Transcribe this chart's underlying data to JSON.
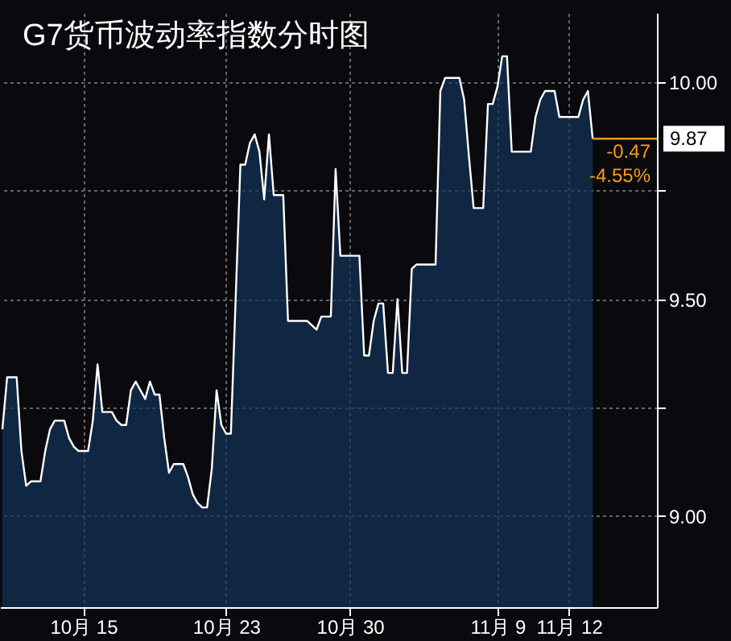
{
  "chart_data": {
    "type": "area",
    "title": "G7货币波动率指数分时图",
    "categories": [
      null,
      null,
      null,
      null,
      null,
      null,
      null,
      null,
      null,
      null,
      null,
      null,
      null,
      null,
      null,
      null,
      null,
      "10月 15",
      null,
      null,
      null,
      null,
      null,
      null,
      null,
      null,
      null,
      null,
      null,
      null,
      null,
      null,
      null,
      null,
      null,
      null,
      null,
      null,
      null,
      null,
      null,
      null,
      null,
      null,
      null,
      null,
      null,
      "10月 23",
      null,
      null,
      null,
      null,
      null,
      null,
      null,
      null,
      null,
      null,
      null,
      null,
      null,
      null,
      null,
      null,
      null,
      null,
      null,
      null,
      null,
      null,
      null,
      null,
      null,
      "10月 30",
      null,
      null,
      null,
      null,
      null,
      null,
      null,
      null,
      null,
      null,
      null,
      null,
      null,
      null,
      null,
      null,
      null,
      null,
      null,
      null,
      null,
      null,
      null,
      null,
      null,
      null,
      null,
      null,
      null,
      null,
      "11月 9",
      null,
      null,
      null,
      null,
      null,
      null,
      null,
      null,
      null,
      null,
      null,
      null,
      null,
      null,
      "11月 12",
      null,
      null,
      null,
      null,
      null,
      null,
      null,
      null,
      null,
      null,
      null,
      null,
      null,
      null,
      null,
      null,
      null,
      null
    ],
    "series": [
      {
        "color": "#12335a",
        "values": [
          9.2,
          9.32,
          9.32,
          9.32,
          9.15,
          9.07,
          9.08,
          9.08,
          9.08,
          9.15,
          9.2,
          9.22,
          9.22,
          9.22,
          9.18,
          9.16,
          9.15,
          9.15,
          9.15,
          9.22,
          9.35,
          9.24,
          9.24,
          9.24,
          9.22,
          9.21,
          9.21,
          9.29,
          9.31,
          9.29,
          9.27,
          9.31,
          9.28,
          9.28,
          9.18,
          9.1,
          9.12,
          9.12,
          9.12,
          9.09,
          9.05,
          9.03,
          9.02,
          9.02,
          9.11,
          9.29,
          9.21,
          9.19,
          9.19,
          9.5,
          9.81,
          9.81,
          9.86,
          9.88,
          9.84,
          9.73,
          9.88,
          9.74,
          9.74,
          9.74,
          9.45,
          9.45,
          9.45,
          9.45,
          9.45,
          9.44,
          9.43,
          9.46,
          9.46,
          9.46,
          9.8,
          9.6,
          9.6,
          9.6,
          9.6,
          9.6,
          9.37,
          9.37,
          9.45,
          9.49,
          9.49,
          9.33,
          9.33,
          9.5,
          9.33,
          9.33,
          9.57,
          9.58,
          9.58,
          9.58,
          9.58,
          9.58,
          9.98,
          10.01,
          10.01,
          10.01,
          10.01,
          9.96,
          9.83,
          9.71,
          9.71,
          9.71,
          9.95,
          9.95,
          9.99,
          10.06,
          10.06,
          9.84,
          9.84,
          9.84,
          9.84,
          9.84,
          9.92,
          9.96,
          9.98,
          9.98,
          9.98,
          9.92,
          9.92,
          9.92,
          9.92,
          9.92,
          9.96,
          9.98,
          9.87,
          null,
          null,
          null,
          null,
          null,
          null,
          null,
          null,
          null,
          null,
          null,
          null,
          null
        ]
      }
    ],
    "ylim": [
      8.79,
      10.16
    ],
    "yticks": [
      {
        "value": 9,
        "label": "9.00"
      },
      {
        "value": 9.25,
        "label": null
      },
      {
        "value": 9.5,
        "label": "9.50"
      },
      {
        "value": 9.75,
        "label": null
      },
      {
        "value": 10,
        "label": "10.00"
      }
    ],
    "grid": true,
    "ref_lines": [
      {
        "axis": "y",
        "value": 9.87,
        "label": "9.87",
        "color": "#f39c12"
      }
    ],
    "annotations": [
      "-0.47",
      "-4.55%"
    ]
  }
}
